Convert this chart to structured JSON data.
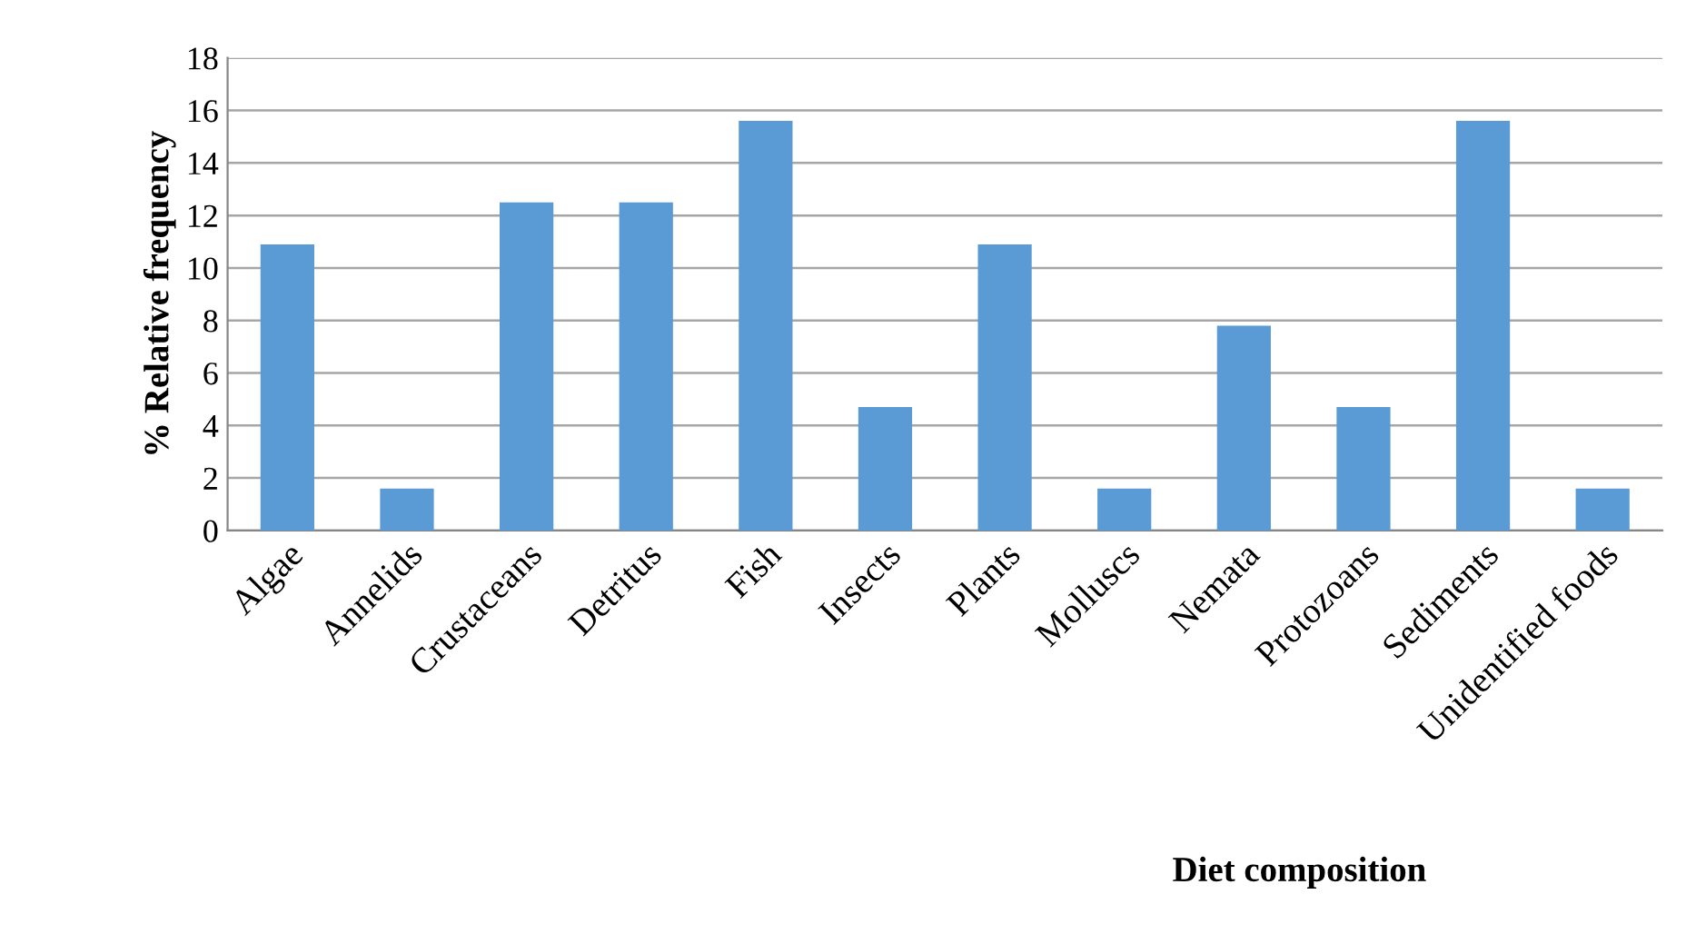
{
  "chart_data": {
    "type": "bar",
    "categories": [
      "Algae",
      "Annelids",
      "Crustaceans",
      "Detritus",
      "Fish",
      "Insects",
      "Plants",
      "Molluscs",
      "Nemata",
      "Protozoans",
      "Sediments",
      "Unidentified foods"
    ],
    "values": [
      10.9,
      1.6,
      12.5,
      12.5,
      15.6,
      4.7,
      10.9,
      1.6,
      7.8,
      4.7,
      15.6,
      1.6
    ],
    "color": "#5b9bd5",
    "xlabel": "Diet composition",
    "ylabel": "% Relative frequency",
    "ylim": [
      0,
      18
    ],
    "yticks": [
      0,
      2,
      4,
      6,
      8,
      10,
      12,
      14,
      16,
      18
    ],
    "grid": "y"
  }
}
